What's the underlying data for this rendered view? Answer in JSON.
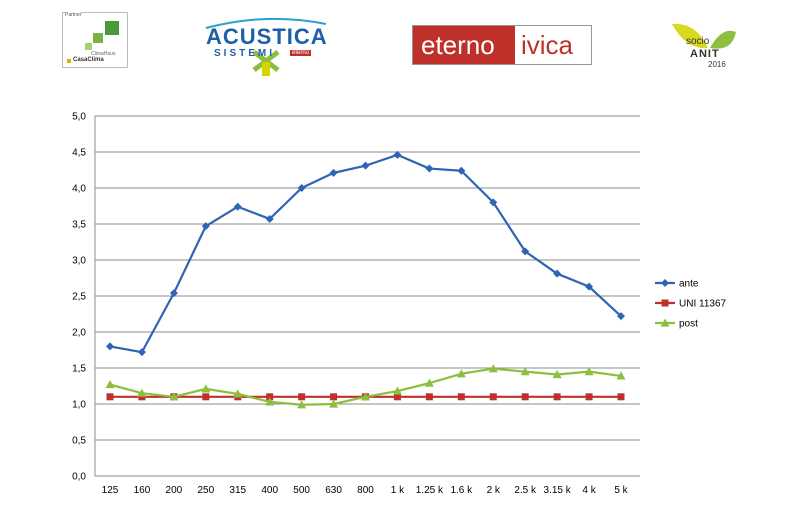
{
  "logos": {
    "partner": {
      "caption": "Partner",
      "line1": "ClimaHaus",
      "line2": "CasaClima"
    },
    "acustica": {
      "title": "ACUSTICA",
      "subtitle": "SISTEMI",
      "tag": "eterno"
    },
    "eternoivica": {
      "part1": "eterno",
      "part2": "ivica"
    },
    "anit": {
      "word1": "socio",
      "word2": "ANIT",
      "year": "2016"
    }
  },
  "colors": {
    "ante": "#2e64b4",
    "uni": "#c0302b",
    "post": "#8cbf3f",
    "grid": "#8c8c8c",
    "eterno_bg": "#c0302b"
  },
  "chart_data": {
    "type": "line",
    "categories": [
      "125",
      "160",
      "200",
      "250",
      "315",
      "400",
      "500",
      "630",
      "800",
      "1 k",
      "1.25 k",
      "1.6 k",
      "2 k",
      "2.5 k",
      "3.15 k",
      "4 k",
      "5 k"
    ],
    "y_ticks": [
      "0,0",
      "0,5",
      "1,0",
      "1,5",
      "2,0",
      "2,5",
      "3,0",
      "3,5",
      "4,0",
      "4,5",
      "5,0"
    ],
    "ylim": [
      0,
      5
    ],
    "grid": true,
    "legend_position": "right",
    "title": "",
    "xlabel": "",
    "ylabel": "",
    "series": [
      {
        "name": "ante",
        "marker": "diamond",
        "values": [
          1.8,
          1.72,
          2.54,
          3.47,
          3.74,
          3.57,
          4.0,
          4.21,
          4.31,
          4.46,
          4.27,
          4.24,
          3.8,
          3.12,
          2.81,
          2.63,
          2.22
        ]
      },
      {
        "name": "UNI 11367",
        "marker": "square",
        "values": [
          1.1,
          1.1,
          1.1,
          1.1,
          1.1,
          1.1,
          1.1,
          1.1,
          1.1,
          1.1,
          1.1,
          1.1,
          1.1,
          1.1,
          1.1,
          1.1,
          1.1
        ]
      },
      {
        "name": "post",
        "marker": "triangle",
        "values": [
          1.27,
          1.15,
          1.1,
          1.21,
          1.14,
          1.03,
          0.99,
          1.0,
          1.1,
          1.18,
          1.29,
          1.42,
          1.49,
          1.45,
          1.41,
          1.45,
          1.39
        ]
      }
    ]
  }
}
